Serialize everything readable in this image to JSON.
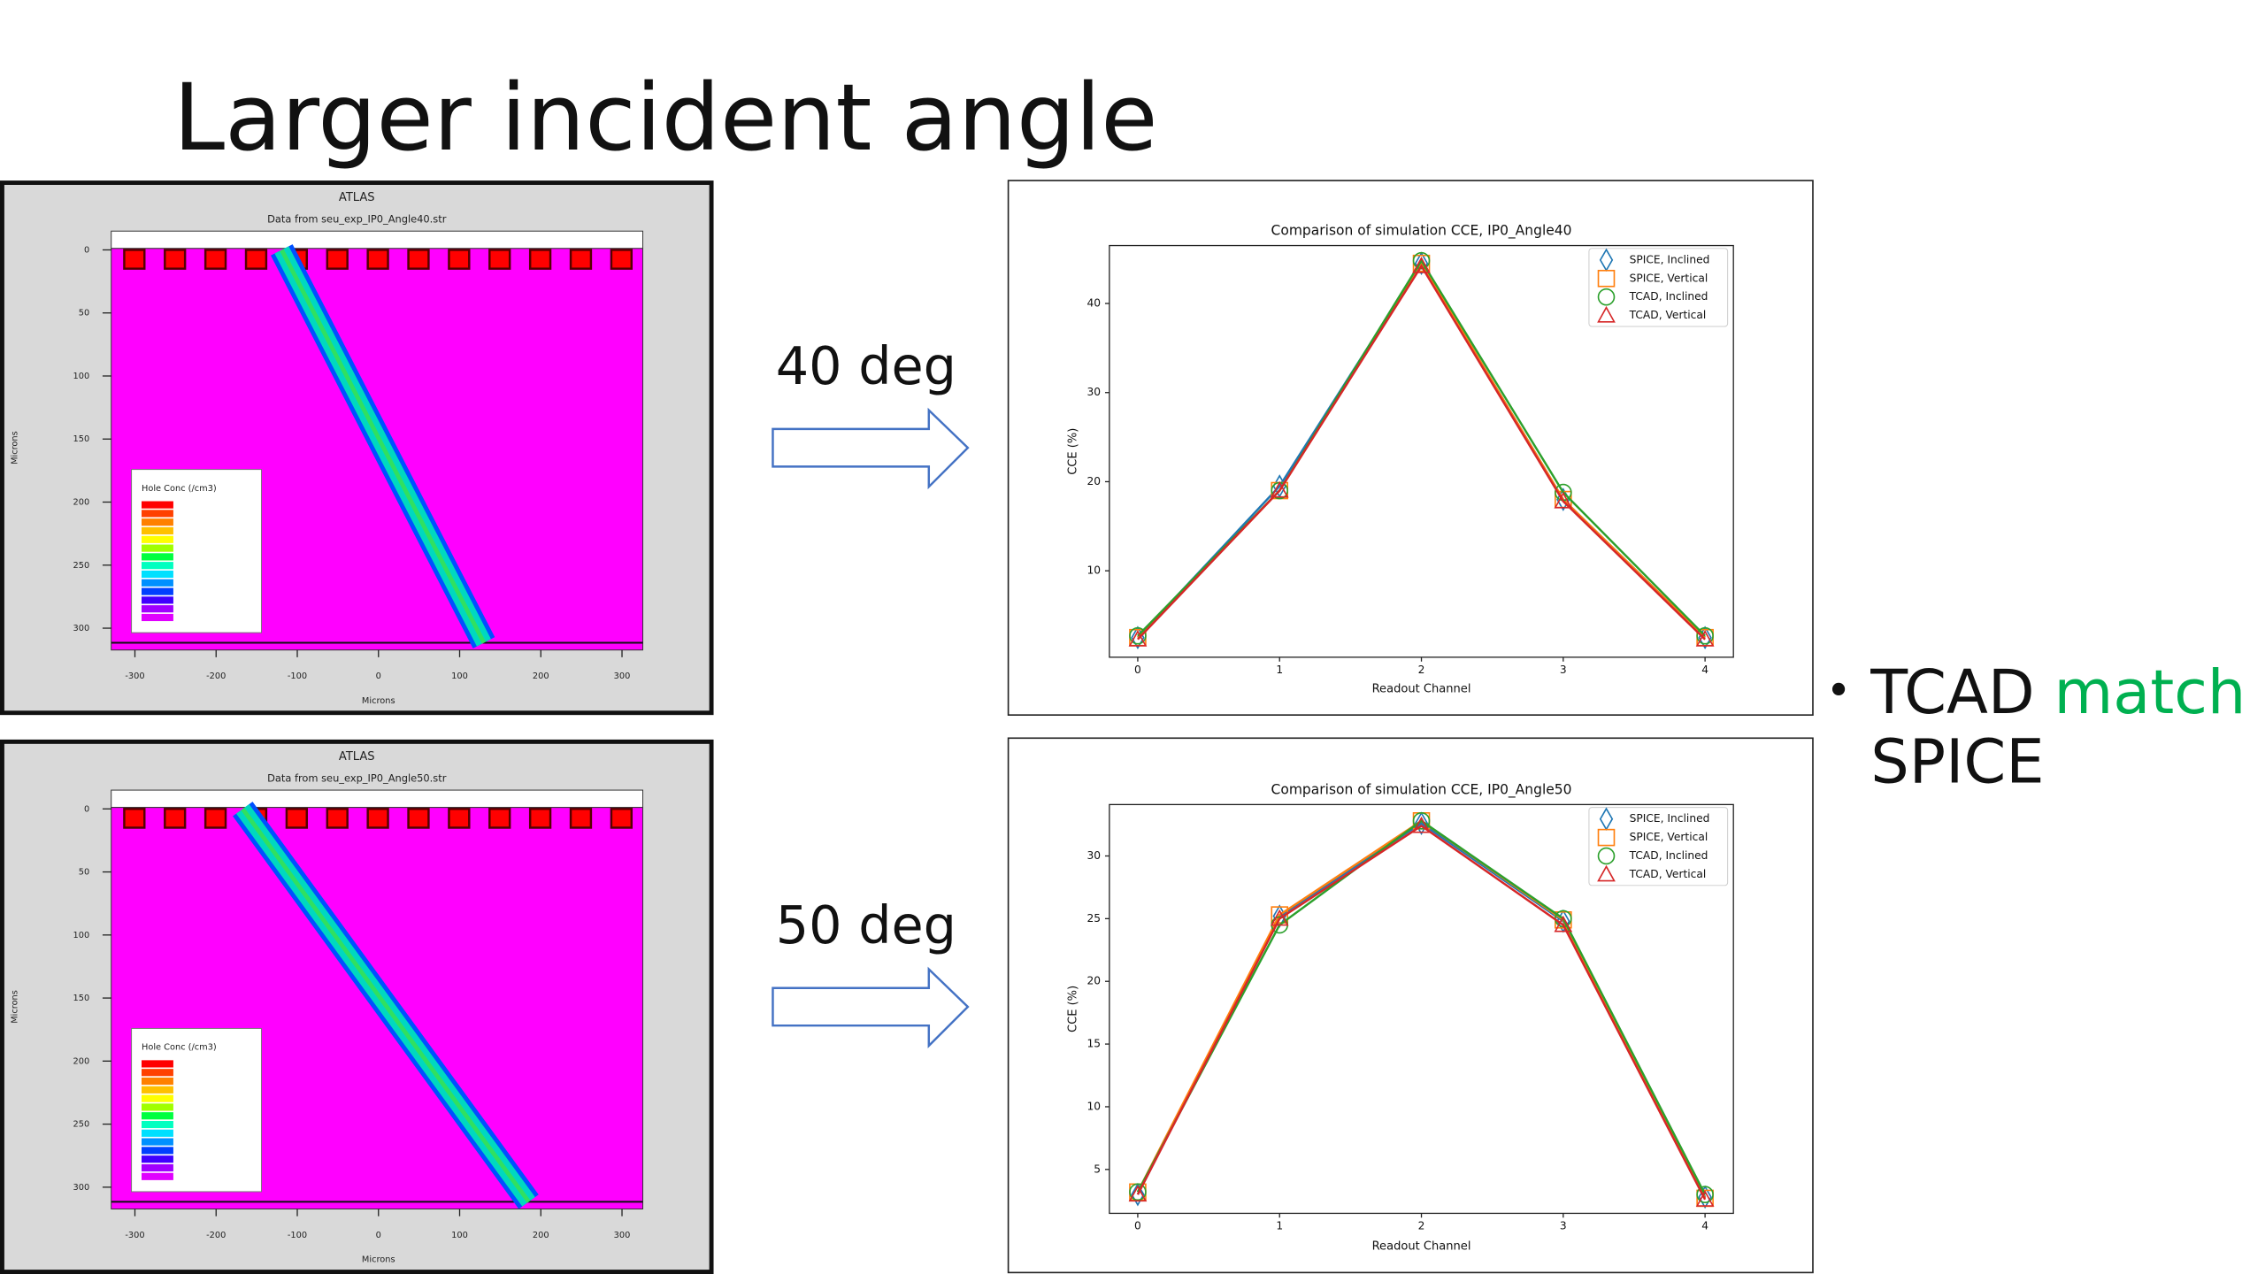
{
  "slide": {
    "title": "Larger incident angle",
    "arrow_labels": [
      "40 deg",
      "50 deg"
    ],
    "bullet": {
      "text": "TCAD",
      "highlight": "match",
      "rest": "SPICE"
    }
  },
  "tcad_plots": [
    {
      "title": "ATLAS",
      "subtitle": "Data from seu_exp_IP0_Angle40.str",
      "xlabel": "Microns",
      "ylabel": "Microns",
      "xticks": [
        -300,
        -200,
        -100,
        0,
        100,
        200,
        300
      ],
      "yticks": [
        0,
        50,
        100,
        150,
        200,
        250,
        300
      ],
      "legend_title": "Hole Conc (/cm3)"
    },
    {
      "title": "ATLAS",
      "subtitle": "Data from seu_exp_IP0_Angle50.str",
      "xlabel": "Microns",
      "ylabel": "Microns",
      "xticks": [
        -300,
        -200,
        -100,
        0,
        100,
        200,
        300
      ],
      "yticks": [
        0,
        50,
        100,
        150,
        200,
        250,
        300
      ],
      "legend_title": "Hole Conc (/cm3)"
    }
  ],
  "chart_data": [
    {
      "type": "line",
      "title": "Comparison of simulation CCE, IP0_Angle40",
      "xlabel": "Readout Channel",
      "ylabel": "CCE (%)",
      "x": [
        0,
        1,
        2,
        3,
        4
      ],
      "xlim": [
        -0.2,
        4.2
      ],
      "xticks": [
        0,
        1,
        2,
        3,
        4
      ],
      "ylim": [
        0.3,
        46.5
      ],
      "yticks": [
        10,
        20,
        30,
        40
      ],
      "legend": "upper right",
      "series": [
        {
          "name": "SPICE, Inclined",
          "color": "#1f77b4",
          "marker": "diamond",
          "values": [
            2.5,
            19.5,
            44.5,
            18,
            2.5
          ]
        },
        {
          "name": "SPICE, Vertical",
          "color": "#ff7f0e",
          "marker": "square",
          "values": [
            2.5,
            19,
            44.5,
            18,
            2.5
          ]
        },
        {
          "name": "TCAD, Inclined",
          "color": "#2ca02c",
          "marker": "circle",
          "values": [
            2.7,
            19,
            44.8,
            18.8,
            2.7
          ]
        },
        {
          "name": "TCAD, Vertical",
          "color": "#d62728",
          "marker": "triangle",
          "values": [
            2.3,
            19,
            44.2,
            17.8,
            2.3
          ]
        }
      ]
    },
    {
      "type": "line",
      "title": "Comparison of simulation CCE, IP0_Angle50",
      "xlabel": "Readout Channel",
      "ylabel": "CCE (%)",
      "x": [
        0,
        1,
        2,
        3,
        4
      ],
      "xlim": [
        -0.2,
        4.2
      ],
      "xticks": [
        0,
        1,
        2,
        3,
        4
      ],
      "ylim": [
        1.5,
        34.1
      ],
      "yticks": [
        5,
        10,
        15,
        20,
        25,
        30
      ],
      "legend": "upper right",
      "series": [
        {
          "name": "SPICE, Inclined",
          "color": "#1f77b4",
          "marker": "diamond",
          "values": [
            3,
            25.2,
            32.6,
            24.8,
            2.8
          ]
        },
        {
          "name": "SPICE, Vertical",
          "color": "#ff7f0e",
          "marker": "square",
          "values": [
            3.2,
            25.3,
            32.8,
            24.9,
            2.7
          ]
        },
        {
          "name": "TCAD, Inclined",
          "color": "#2ca02c",
          "marker": "circle",
          "values": [
            3.2,
            24.5,
            32.8,
            25,
            3
          ]
        },
        {
          "name": "TCAD, Vertical",
          "color": "#d62728",
          "marker": "triangle",
          "values": [
            3,
            25,
            32.4,
            24.5,
            2.6
          ]
        }
      ]
    }
  ]
}
